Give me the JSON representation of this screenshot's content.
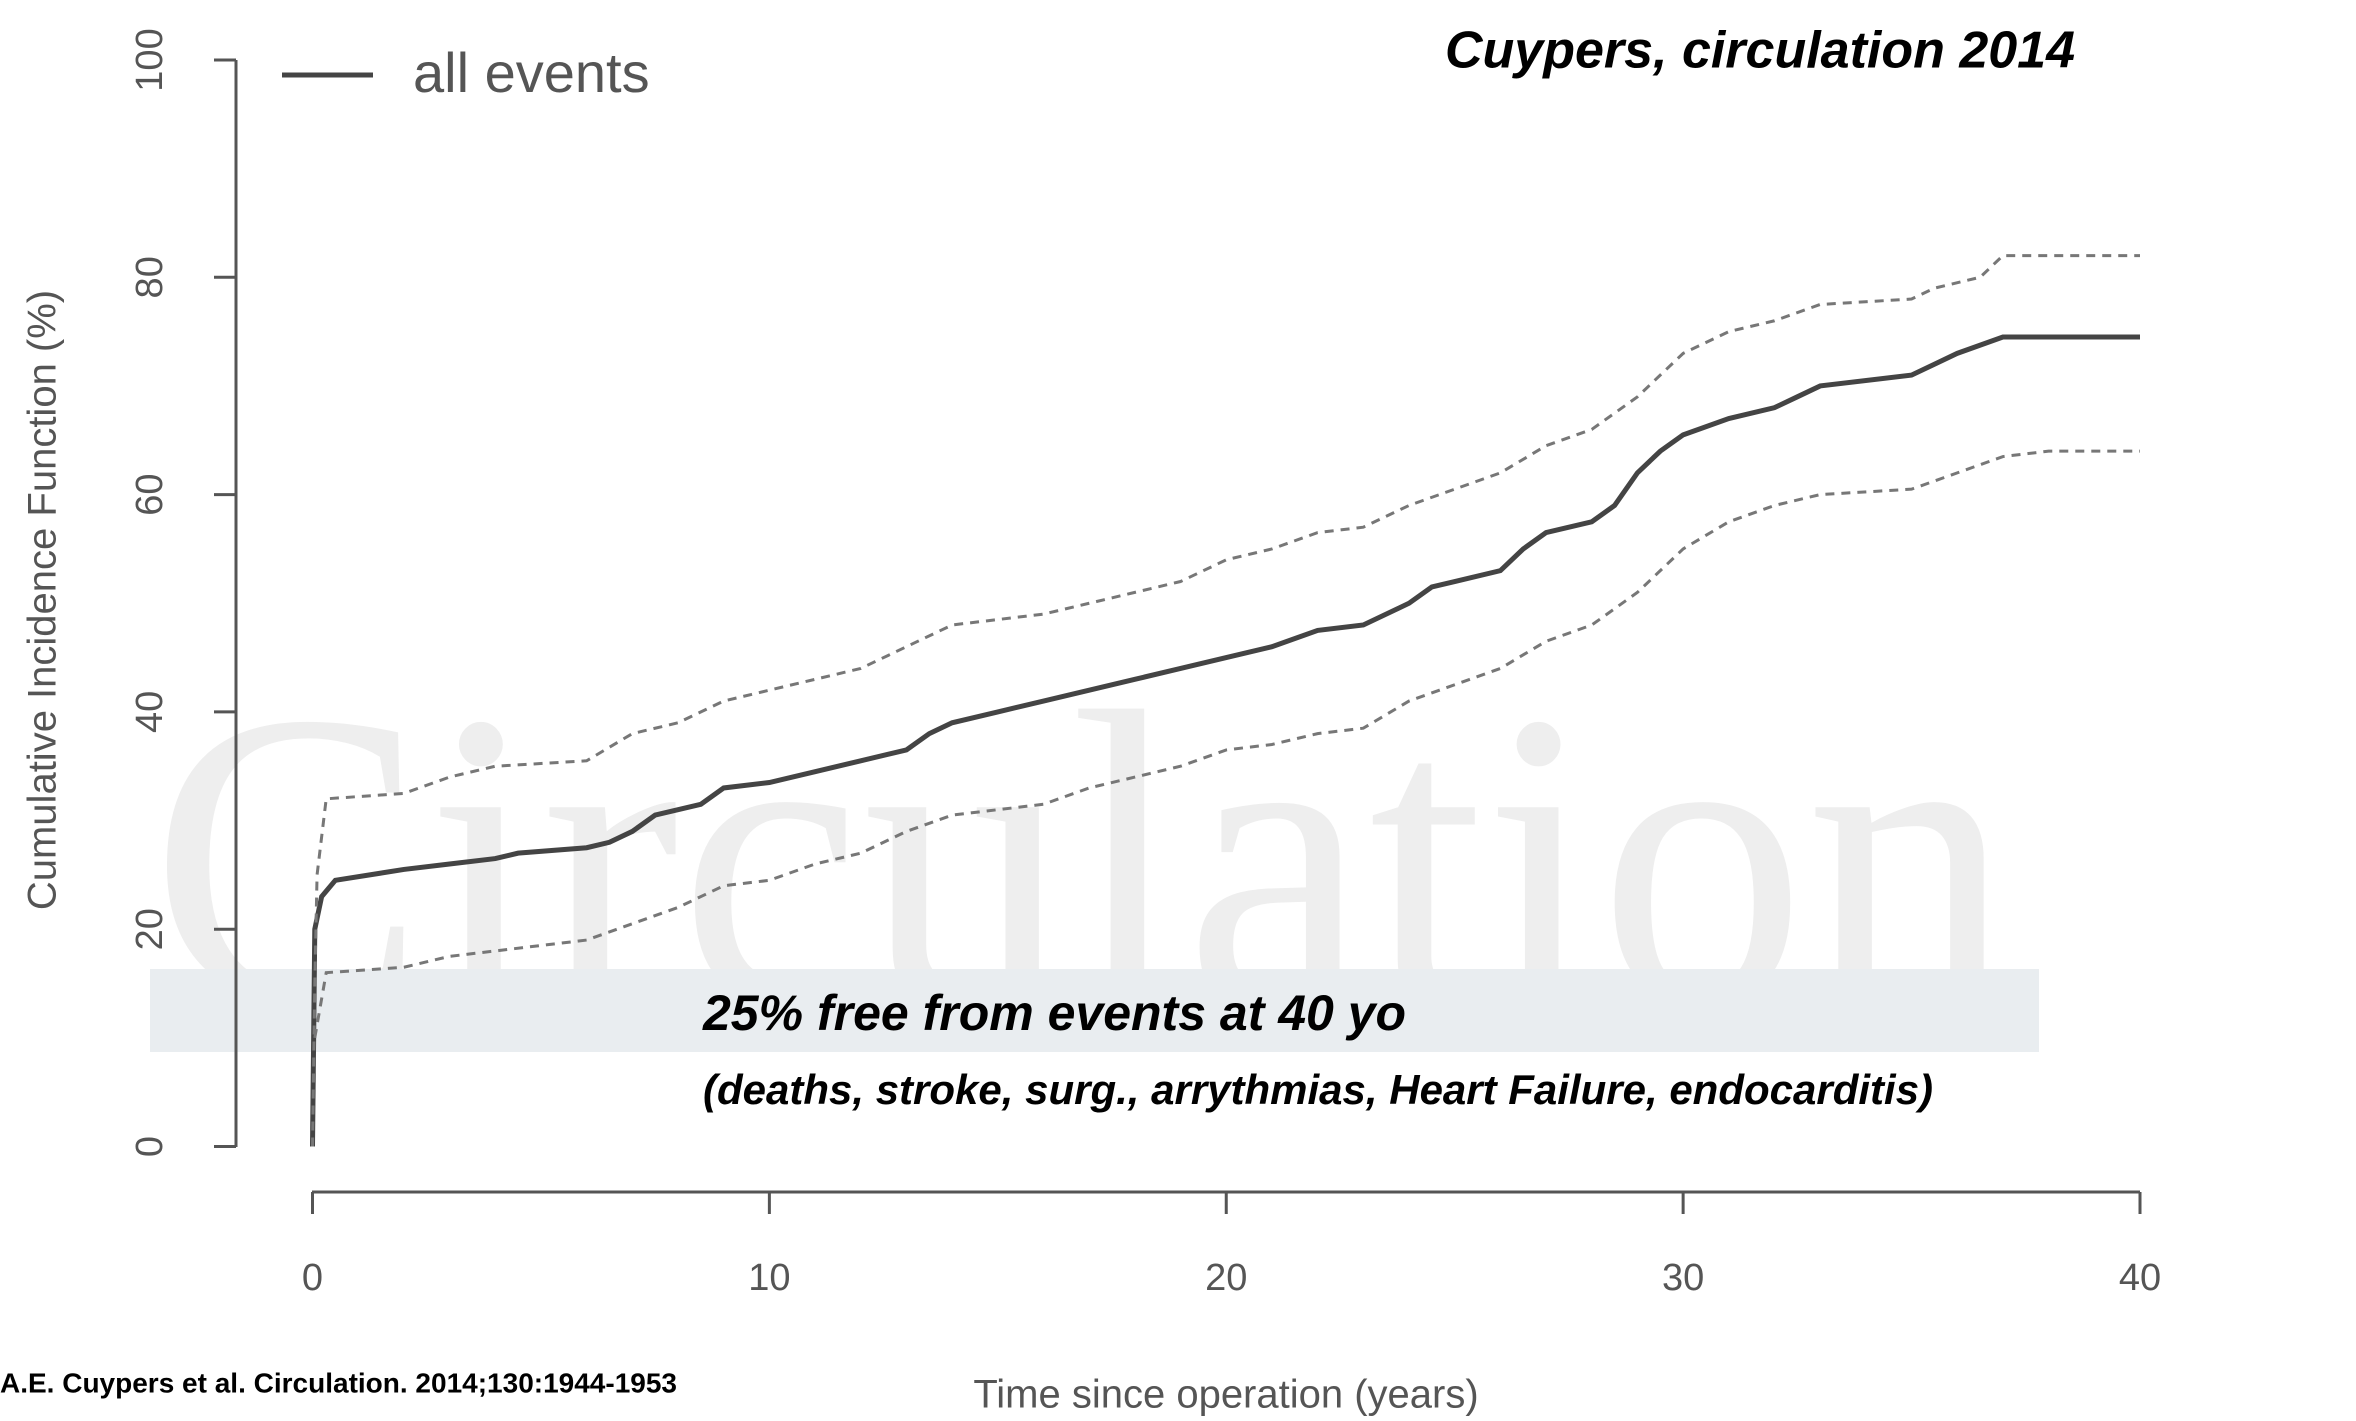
{
  "chart_data": {
    "type": "line",
    "watermark": "Circulation",
    "title": "Cuypers, circulation 2014",
    "annotations": [
      "25% free from events at 40 yo",
      "(deaths, stroke, surg., arrythmias, Heart Failure, endocarditis)"
    ],
    "source": "A.E. Cuypers et al. Circulation. 2014;130:1944-1953",
    "xlabel": "Time since operation (years)",
    "ylabel": "Cumulative Incidence Function (%)",
    "xlim": [
      0,
      40
    ],
    "xticks": [
      0,
      10,
      20,
      30,
      40
    ],
    "ylim": [
      0,
      100
    ],
    "yticks": [
      0,
      20,
      40,
      60,
      80,
      100
    ],
    "series": [
      {
        "name": "all events",
        "color": "#444444",
        "style": "solid",
        "x": [
          0,
          0.05,
          0.2,
          0.5,
          2,
          3,
          4,
          4.5,
          6,
          6.5,
          7,
          7.5,
          8.5,
          9,
          10,
          11,
          12,
          13,
          13.5,
          14,
          15,
          16,
          17,
          18,
          19,
          20,
          21,
          22,
          23,
          24,
          24.5,
          25,
          26,
          26.5,
          27,
          28,
          28.5,
          29,
          29.5,
          30,
          31,
          32,
          32.5,
          33,
          35,
          35.5,
          36,
          37,
          40
        ],
        "values": [
          0,
          20,
          23,
          24.5,
          25.5,
          26,
          26.5,
          27,
          27.5,
          28,
          29,
          30.5,
          31.5,
          33,
          33.5,
          34.5,
          35.5,
          36.5,
          38,
          39,
          40,
          41,
          42,
          43,
          44,
          45,
          46,
          47.5,
          48,
          50,
          51.5,
          52,
          53,
          55,
          56.5,
          57.5,
          59,
          62,
          64,
          65.5,
          67,
          68,
          69,
          70,
          71,
          72,
          73,
          74.5,
          74.5
        ]
      },
      {
        "color": "#777777",
        "style": "dashed",
        "x": [
          0,
          0.05,
          0.1,
          0.3,
          2,
          3,
          4,
          6,
          7,
          8,
          9,
          10,
          11,
          12,
          13,
          14,
          16,
          17,
          18,
          19,
          20,
          21,
          22,
          23,
          24,
          25,
          26,
          27,
          28,
          29,
          30,
          31,
          32,
          33,
          35,
          35.5,
          36.5,
          37,
          40
        ],
        "values": [
          0,
          15,
          25,
          32,
          32.5,
          34,
          35,
          35.5,
          38,
          39,
          41,
          42,
          43,
          44,
          46,
          48,
          49,
          50,
          51,
          52,
          54,
          55,
          56.5,
          57,
          59,
          60.5,
          62,
          64.5,
          66,
          69,
          73,
          75,
          76,
          77.5,
          78,
          79,
          80,
          82,
          82
        ]
      },
      {
        "color": "#777777",
        "style": "dashed",
        "x": [
          0.05,
          0.3,
          2,
          3,
          4,
          6,
          7,
          8,
          9,
          10,
          11,
          12,
          13,
          14,
          16,
          17,
          18,
          19,
          20,
          21,
          22,
          23,
          24,
          25,
          26,
          27,
          28,
          29,
          30,
          31,
          32,
          33,
          35,
          36,
          37,
          38,
          40
        ],
        "values": [
          10,
          16,
          16.5,
          17.5,
          18,
          19,
          20.5,
          22,
          24,
          24.5,
          26,
          27,
          29,
          30.5,
          31.5,
          33,
          34,
          35,
          36.5,
          37,
          38,
          38.5,
          41,
          42.5,
          44,
          46.5,
          48,
          51,
          55,
          57.5,
          59,
          60,
          60.5,
          62,
          63.5,
          64,
          64
        ]
      }
    ]
  }
}
